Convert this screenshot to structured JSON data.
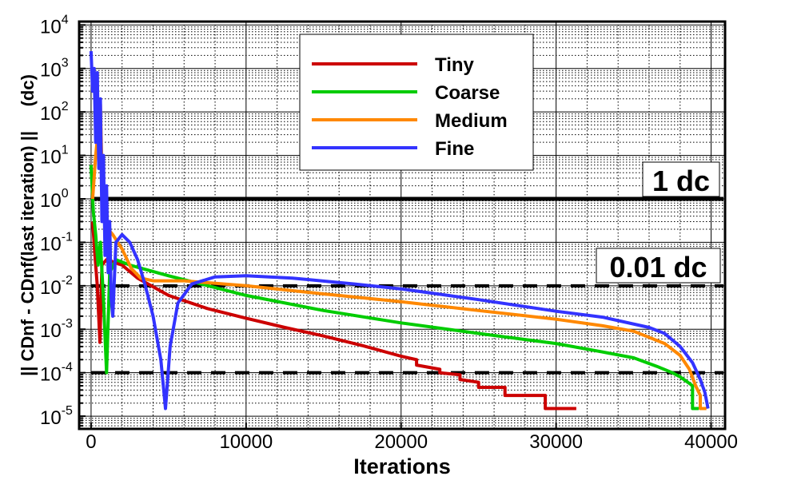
{
  "chart_data": {
    "type": "line",
    "title": "",
    "xlabel": "Iterations",
    "ylabel": "|| CDnf - CDnf(last iteration) ||     (dc)",
    "xlim": [
      -770,
      40900
    ],
    "ylim": [
      5.1e-06,
      12000
    ],
    "yscale": "log",
    "grid": true,
    "legend_position": "top-center",
    "x_ticks": [
      0,
      10000,
      20000,
      30000,
      40000
    ],
    "y_ticks": [
      {
        "base": "10",
        "exp": "4",
        "value": 10000
      },
      {
        "base": "10",
        "exp": "3",
        "value": 1000
      },
      {
        "base": "10",
        "exp": "2",
        "value": 100
      },
      {
        "base": "10",
        "exp": "1",
        "value": 10
      },
      {
        "base": "10",
        "exp": "0",
        "value": 1
      },
      {
        "base": "10",
        "exp": "-1",
        "value": 0.1
      },
      {
        "base": "10",
        "exp": "-2",
        "value": 0.01
      },
      {
        "base": "10",
        "exp": "-3",
        "value": 0.001
      },
      {
        "base": "10",
        "exp": "-4",
        "value": 0.0001
      },
      {
        "base": "10",
        "exp": "-5",
        "value": 1e-05
      }
    ],
    "reference_lines": [
      {
        "value": 1,
        "style": "solid",
        "label": "1 dc"
      },
      {
        "value": 0.01,
        "style": "dashed",
        "label": "0.01 dc"
      },
      {
        "value": 0.0001,
        "style": "dashed",
        "label": ""
      }
    ],
    "series": [
      {
        "name": "Tiny",
        "color": "#cc0000",
        "x": [
          100,
          250,
          400,
          570,
          700,
          1000,
          2000,
          3000,
          5000,
          7500,
          10000,
          12500,
          15000,
          17500,
          20000,
          21000,
          21000,
          22500,
          22500,
          23800,
          23800,
          25000,
          25000,
          26700,
          26700,
          29300,
          29300,
          31300
        ],
        "y": [
          0.3,
          0.05,
          0.01,
          0.0005,
          0.03,
          0.04,
          0.03,
          0.015,
          0.006,
          0.003,
          0.0018,
          0.0011,
          0.0007,
          0.00042,
          0.00024,
          0.0002,
          0.00015,
          0.00012,
          0.0001,
          9e-05,
          7e-05,
          6e-05,
          4.6e-05,
          4.6e-05,
          3e-05,
          3e-05,
          1.5e-05,
          1.5e-05
        ]
      },
      {
        "name": "Coarse",
        "color": "#00cc00",
        "x": [
          0,
          150,
          300,
          450,
          600,
          800,
          1000,
          1200,
          1600,
          2500,
          5000,
          10000,
          15000,
          20000,
          25000,
          30000,
          33000,
          35000,
          36500,
          37500,
          38000,
          38500,
          38800,
          38800,
          39200
        ],
        "y": [
          6,
          0.5,
          0.15,
          0.03,
          0.1,
          0.005,
          0.0001,
          0.02,
          0.04,
          0.03,
          0.017,
          0.006,
          0.0027,
          0.0014,
          0.0008,
          0.00047,
          0.0003,
          0.00022,
          0.00014,
          0.0001,
          8e-05,
          6e-05,
          5e-05,
          1.5e-05,
          1.5e-05
        ]
      },
      {
        "name": "Medium",
        "color": "#ff8800",
        "x": [
          100,
          300,
          500,
          600,
          700,
          900,
          1100,
          1400,
          2000,
          2600,
          3200,
          4000,
          6000,
          10000,
          15000,
          20000,
          25000,
          30000,
          33000,
          35000,
          37000,
          38000,
          38600,
          39000,
          39300,
          39300,
          39700
        ],
        "y": [
          1,
          10,
          50,
          150,
          5,
          0.5,
          0.2,
          0.15,
          0.07,
          0.025,
          0.015,
          0.013,
          0.013,
          0.01,
          0.0065,
          0.0043,
          0.0027,
          0.0017,
          0.0012,
          0.0009,
          0.00047,
          0.00025,
          0.00012,
          5e-05,
          3e-05,
          1.5e-05,
          1.5e-05
        ]
      },
      {
        "name": "Fine",
        "color": "#3333ff",
        "x": [
          0,
          100,
          200,
          300,
          400,
          500,
          600,
          700,
          800,
          900,
          1000,
          1100,
          1200,
          1300,
          1400,
          1600,
          2000,
          2500,
          3000,
          3500,
          4000,
          4500,
          4800,
          5100,
          5600,
          6500,
          8000,
          10000,
          13000,
          17000,
          20000,
          25000,
          30000,
          33000,
          36000,
          37000,
          38000,
          38800,
          39300,
          39600,
          39800
        ],
        "y": [
          2500,
          300,
          1000,
          20,
          800,
          5,
          200,
          0.3,
          10,
          0.05,
          2,
          0.02,
          0.3,
          0.005,
          0.002,
          0.1,
          0.15,
          0.1,
          0.04,
          0.01,
          0.002,
          0.0002,
          1.5e-05,
          0.0004,
          0.004,
          0.011,
          0.016,
          0.017,
          0.015,
          0.011,
          0.0085,
          0.0048,
          0.0026,
          0.0019,
          0.0011,
          0.0008,
          0.0004,
          0.00017,
          7e-05,
          3.5e-05,
          1.5e-05
        ]
      }
    ]
  }
}
